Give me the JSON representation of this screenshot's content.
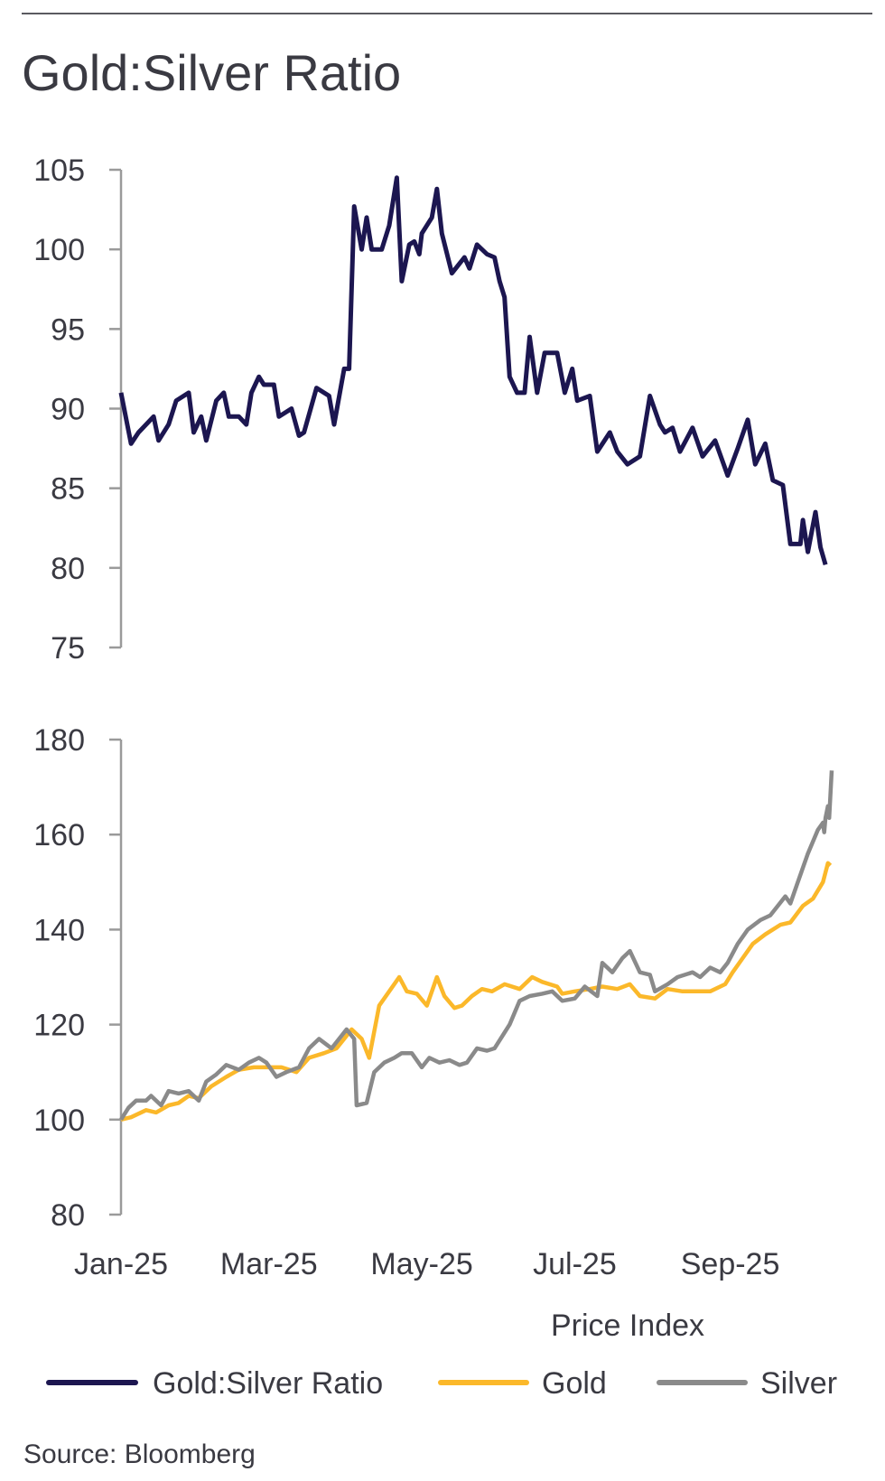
{
  "title": "Gold:Silver Ratio",
  "source": "Source: Bloomberg",
  "colors": {
    "ratio": "#1c1650",
    "gold": "#fbb82a",
    "silver": "#8a8a8a",
    "axis": "#999999",
    "text": "#3a3a42"
  },
  "chart_data": [
    {
      "type": "line",
      "title": "Gold:Silver Ratio",
      "x_unit": "days since 2025-01-01",
      "xlim": [
        0,
        284
      ],
      "ylim": [
        75,
        105
      ],
      "yticks": [
        105,
        100,
        95,
        90,
        85,
        80,
        75
      ],
      "grid": false,
      "series": [
        {
          "name": "Gold:Silver Ratio",
          "color": "#1c1650",
          "points": [
            [
              0,
              91
            ],
            [
              4,
              87.8
            ],
            [
              7,
              88.5
            ],
            [
              13,
              89.5
            ],
            [
              15,
              88
            ],
            [
              19,
              89
            ],
            [
              22,
              90.5
            ],
            [
              27,
              91
            ],
            [
              29,
              88.5
            ],
            [
              32,
              89.5
            ],
            [
              34,
              88
            ],
            [
              38,
              90.5
            ],
            [
              41,
              91
            ],
            [
              43,
              89.5
            ],
            [
              47,
              89.5
            ],
            [
              50,
              89
            ],
            [
              52,
              91
            ],
            [
              55,
              92
            ],
            [
              57,
              91.5
            ],
            [
              61,
              91.5
            ],
            [
              63,
              89.5
            ],
            [
              68,
              90
            ],
            [
              71,
              88.3
            ],
            [
              73,
              88.5
            ],
            [
              78,
              91.3
            ],
            [
              83,
              90.8
            ],
            [
              85,
              89
            ],
            [
              89,
              92.5
            ],
            [
              91,
              92.5
            ],
            [
              93,
              102.7
            ],
            [
              96,
              100
            ],
            [
              98,
              102
            ],
            [
              100,
              100
            ],
            [
              104,
              100
            ],
            [
              107,
              101.5
            ],
            [
              110,
              104.5
            ],
            [
              112,
              98
            ],
            [
              115,
              100.3
            ],
            [
              117,
              100.5
            ],
            [
              119,
              99.7
            ],
            [
              120,
              101
            ],
            [
              124,
              102
            ],
            [
              126,
              103.8
            ],
            [
              128,
              101
            ],
            [
              132,
              98.5
            ],
            [
              137,
              99.5
            ],
            [
              139,
              98.8
            ],
            [
              142,
              100.3
            ],
            [
              146,
              99.7
            ],
            [
              149,
              99.5
            ],
            [
              151,
              98
            ],
            [
              153,
              97
            ],
            [
              155,
              92
            ],
            [
              158,
              91
            ],
            [
              161,
              91
            ],
            [
              163,
              94.5
            ],
            [
              166,
              91
            ],
            [
              169,
              93.5
            ],
            [
              174,
              93.5
            ],
            [
              177,
              91
            ],
            [
              180,
              92.5
            ],
            [
              182,
              90.5
            ],
            [
              187,
              90.8
            ],
            [
              190,
              87.3
            ],
            [
              195,
              88.5
            ],
            [
              198,
              87.3
            ],
            [
              202,
              86.5
            ],
            [
              207,
              87
            ],
            [
              211,
              90.8
            ],
            [
              215,
              89
            ],
            [
              217,
              88.5
            ],
            [
              220,
              88.8
            ],
            [
              223,
              87.3
            ],
            [
              228,
              88.8
            ],
            [
              232,
              87
            ],
            [
              237,
              88
            ],
            [
              242,
              85.8
            ],
            [
              246,
              87.5
            ],
            [
              250,
              89.3
            ],
            [
              253,
              86.5
            ],
            [
              257,
              87.8
            ],
            [
              260,
              85.5
            ],
            [
              264,
              85.2
            ],
            [
              267,
              81.5
            ],
            [
              271,
              81.5
            ],
            [
              272,
              83
            ],
            [
              274,
              81
            ],
            [
              277,
              83.5
            ],
            [
              279,
              81.3
            ],
            [
              281,
              80.2
            ]
          ]
        }
      ]
    },
    {
      "type": "line",
      "title": "Price Index",
      "x_unit": "days since 2025-01-01",
      "xlim": [
        0,
        284
      ],
      "ylim": [
        80,
        180
      ],
      "yticks": [
        180,
        160,
        140,
        120,
        100,
        80
      ],
      "xticks": [
        {
          "day": 0,
          "label": "Jan-25"
        },
        {
          "day": 59,
          "label": "Mar-25"
        },
        {
          "day": 120,
          "label": "May-25"
        },
        {
          "day": 181,
          "label": "Jul-25"
        },
        {
          "day": 243,
          "label": "Sep-25"
        }
      ],
      "xlabel": "Price Index",
      "grid": false,
      "series": [
        {
          "name": "Gold",
          "color": "#fbb82a",
          "points": [
            [
              0,
              100
            ],
            [
              4,
              100.5
            ],
            [
              10,
              102
            ],
            [
              14,
              101.5
            ],
            [
              19,
              103
            ],
            [
              23,
              103.5
            ],
            [
              27,
              105
            ],
            [
              31,
              104.5
            ],
            [
              36,
              107
            ],
            [
              42,
              109
            ],
            [
              47,
              110.5
            ],
            [
              53,
              111
            ],
            [
              58,
              111
            ],
            [
              64,
              111
            ],
            [
              70,
              110
            ],
            [
              75,
              113
            ],
            [
              81,
              114
            ],
            [
              86,
              115
            ],
            [
              92,
              119
            ],
            [
              96,
              117
            ],
            [
              99,
              113
            ],
            [
              103,
              124
            ],
            [
              107,
              127
            ],
            [
              111,
              130
            ],
            [
              114,
              127
            ],
            [
              118,
              126.5
            ],
            [
              122,
              124
            ],
            [
              126,
              130
            ],
            [
              129,
              126
            ],
            [
              133,
              123.5
            ],
            [
              136,
              124
            ],
            [
              140,
              126
            ],
            [
              144,
              127.5
            ],
            [
              148,
              127
            ],
            [
              153,
              128.5
            ],
            [
              159,
              127.5
            ],
            [
              164,
              130
            ],
            [
              168,
              129
            ],
            [
              174,
              128
            ],
            [
              176,
              126.5
            ],
            [
              181,
              127
            ],
            [
              187,
              127.5
            ],
            [
              192,
              128
            ],
            [
              198,
              127.5
            ],
            [
              203,
              128.5
            ],
            [
              207,
              126
            ],
            [
              213,
              125.5
            ],
            [
              218,
              127.5
            ],
            [
              224,
              127
            ],
            [
              229,
              127
            ],
            [
              235,
              127
            ],
            [
              241,
              128.5
            ],
            [
              244,
              131
            ],
            [
              248,
              134
            ],
            [
              252,
              137
            ],
            [
              257,
              139
            ],
            [
              263,
              141
            ],
            [
              267,
              141.5
            ],
            [
              272,
              145
            ],
            [
              276,
              146.5
            ],
            [
              280,
              150
            ],
            [
              282,
              154
            ],
            [
              283,
              153.5
            ]
          ]
        },
        {
          "name": "Silver",
          "color": "#8a8a8a",
          "points": [
            [
              0,
              100
            ],
            [
              3,
              102.5
            ],
            [
              6,
              104
            ],
            [
              10,
              104
            ],
            [
              12,
              105
            ],
            [
              16,
              103
            ],
            [
              19,
              106
            ],
            [
              23,
              105.5
            ],
            [
              27,
              106
            ],
            [
              31,
              104
            ],
            [
              34,
              108
            ],
            [
              38,
              109.5
            ],
            [
              42,
              111.5
            ],
            [
              47,
              110.5
            ],
            [
              51,
              112
            ],
            [
              55,
              113
            ],
            [
              58,
              112
            ],
            [
              62,
              109
            ],
            [
              66,
              110
            ],
            [
              71,
              111
            ],
            [
              75,
              115
            ],
            [
              79,
              117
            ],
            [
              84,
              115
            ],
            [
              90,
              119
            ],
            [
              93,
              117
            ],
            [
              94,
              103
            ],
            [
              98,
              103.5
            ],
            [
              101,
              110
            ],
            [
              105,
              112
            ],
            [
              109,
              113
            ],
            [
              112,
              114
            ],
            [
              116,
              114
            ],
            [
              120,
              111
            ],
            [
              123,
              113
            ],
            [
              127,
              112
            ],
            [
              131,
              112.5
            ],
            [
              135,
              111.5
            ],
            [
              138,
              112
            ],
            [
              142,
              115
            ],
            [
              146,
              114.5
            ],
            [
              149,
              115
            ],
            [
              155,
              120
            ],
            [
              159,
              125
            ],
            [
              163,
              126
            ],
            [
              168,
              126.5
            ],
            [
              172,
              127
            ],
            [
              176,
              125
            ],
            [
              181,
              125.5
            ],
            [
              185,
              128
            ],
            [
              190,
              126
            ],
            [
              192,
              133
            ],
            [
              196,
              131
            ],
            [
              200,
              134
            ],
            [
              203,
              135.5
            ],
            [
              207,
              131
            ],
            [
              211,
              130.5
            ],
            [
              213,
              127
            ],
            [
              218,
              128.5
            ],
            [
              222,
              130
            ],
            [
              228,
              131
            ],
            [
              231,
              130
            ],
            [
              235,
              132
            ],
            [
              239,
              131
            ],
            [
              242,
              133
            ],
            [
              246,
              137
            ],
            [
              250,
              140
            ],
            [
              255,
              142
            ],
            [
              259,
              143
            ],
            [
              265,
              147
            ],
            [
              267,
              145.5
            ],
            [
              270,
              150
            ],
            [
              274,
              156
            ],
            [
              278,
              161
            ],
            [
              280,
              162.5
            ],
            [
              280.5,
              160.5
            ],
            [
              281,
              163.5
            ],
            [
              282,
              166
            ],
            [
              282.5,
              163.5
            ],
            [
              283.5,
              173.5
            ]
          ]
        }
      ]
    }
  ],
  "legend": [
    {
      "label": "Gold:Silver Ratio",
      "color": "#1c1650"
    },
    {
      "label": "Gold",
      "color": "#fbb82a"
    },
    {
      "label": "Silver",
      "color": "#8a8a8a"
    }
  ]
}
